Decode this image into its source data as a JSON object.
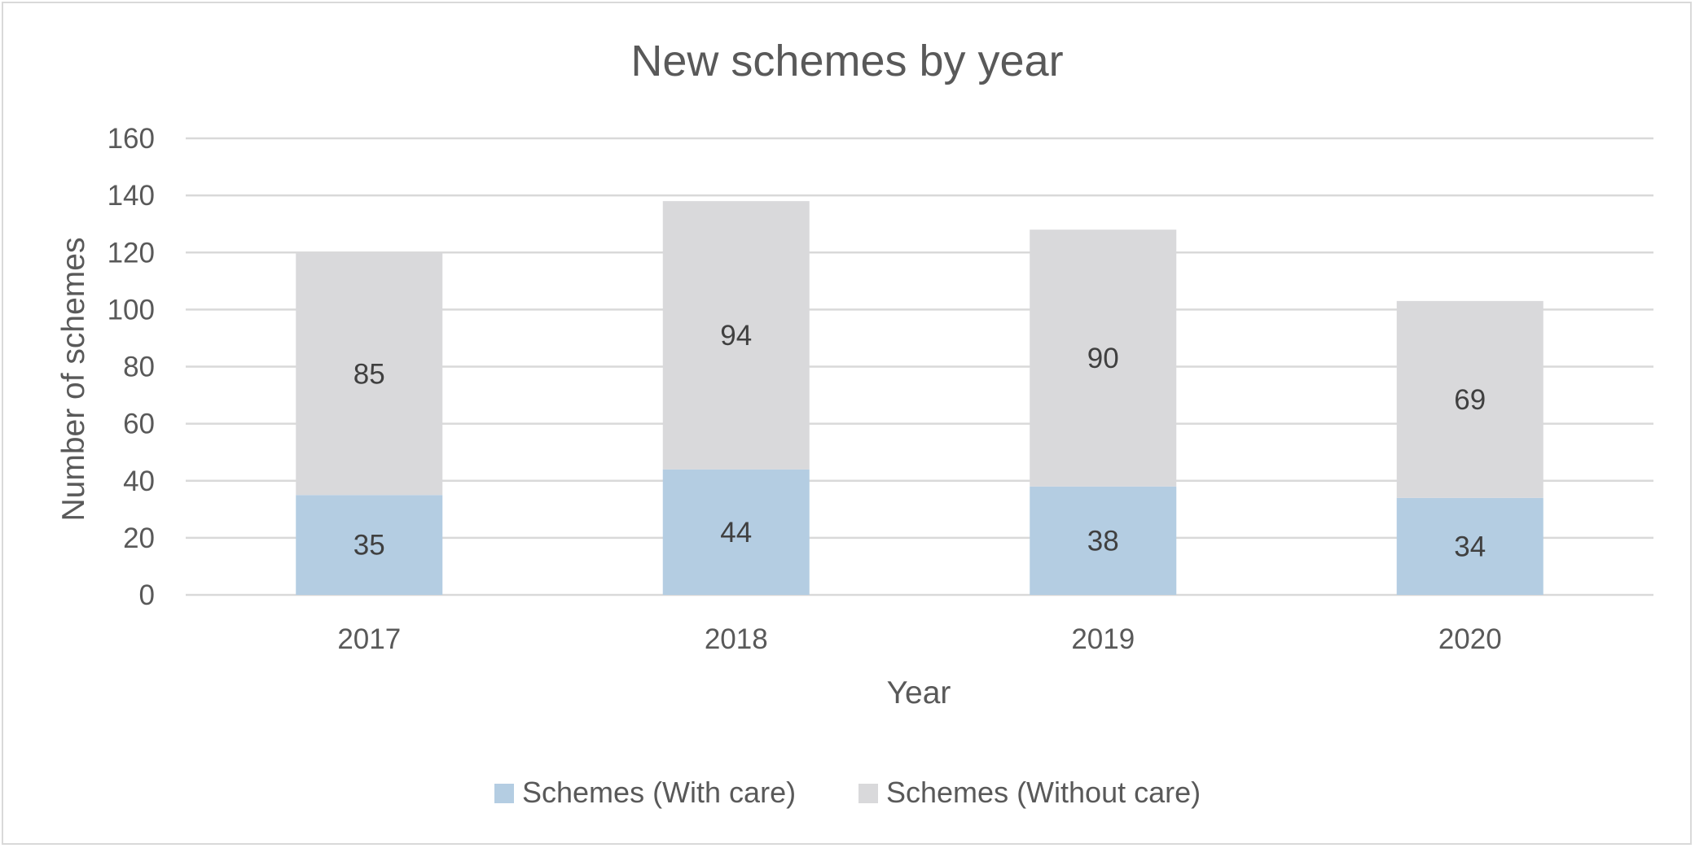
{
  "chart_data": {
    "type": "bar",
    "stacked": true,
    "title": "New schemes by year",
    "xlabel": "Year",
    "ylabel": "Number of schemes",
    "categories": [
      "2017",
      "2018",
      "2019",
      "2020"
    ],
    "series": [
      {
        "name": "Schemes (With care)",
        "values": [
          35,
          44,
          38,
          34
        ],
        "color": "#b4cde2"
      },
      {
        "name": "Schemes (Without care)",
        "values": [
          85,
          94,
          90,
          69
        ],
        "color": "#d9d9db"
      }
    ],
    "ylim": [
      0,
      160
    ],
    "yticks": [
      0,
      20,
      40,
      60,
      80,
      100,
      120,
      140,
      160
    ],
    "grid": true,
    "gridColor": "#d9d9d9",
    "legend": "bottom"
  }
}
